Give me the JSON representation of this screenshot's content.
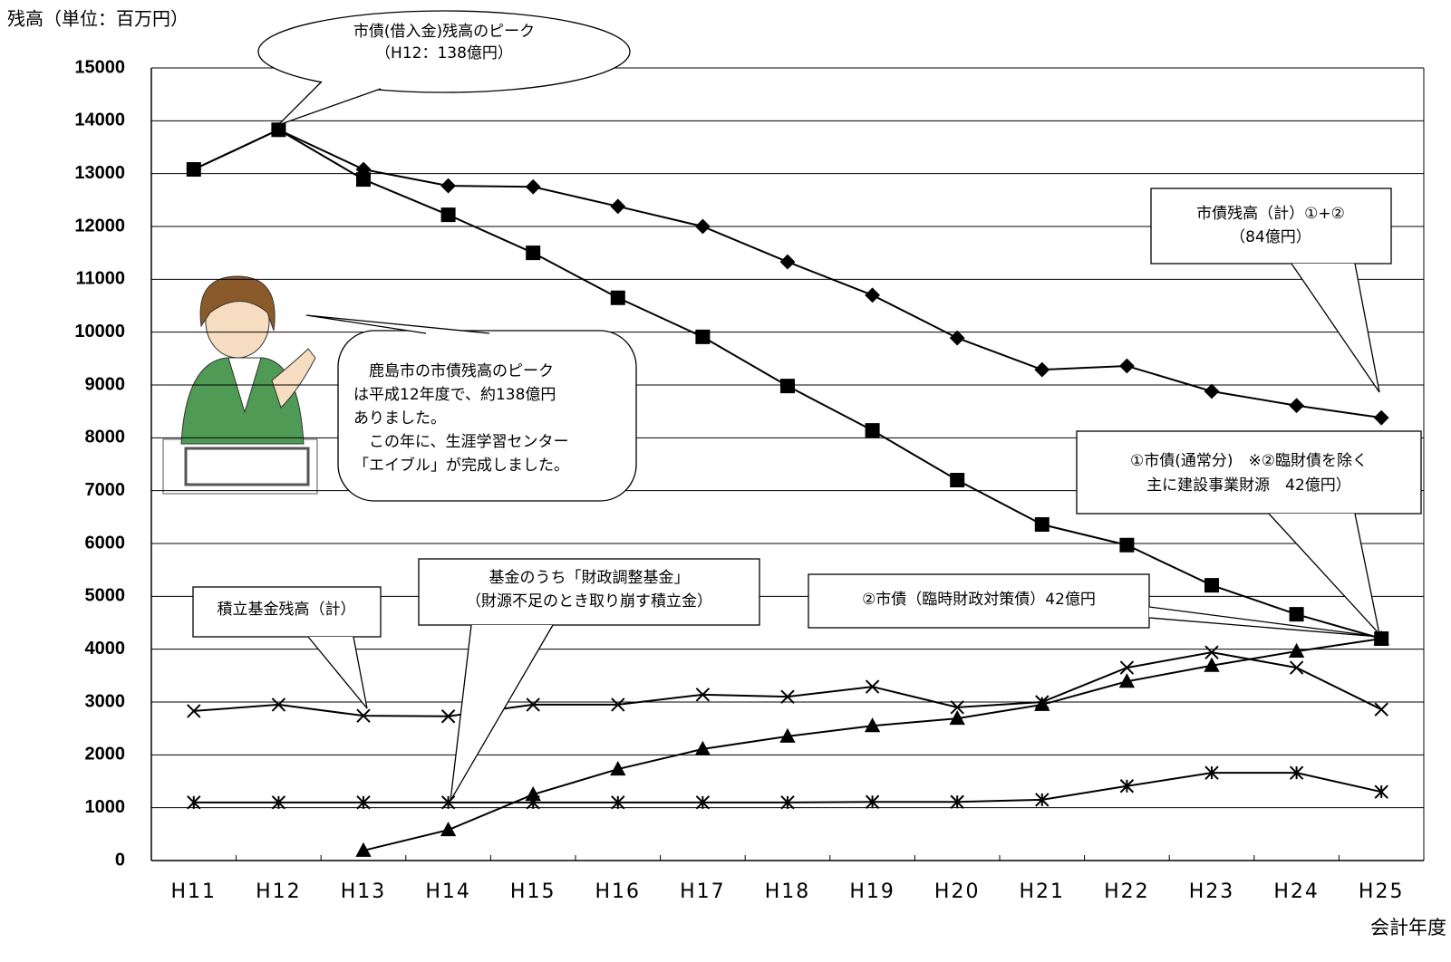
{
  "chart_data": {
    "type": "line",
    "y_axis_label": "残高（単位：百万円）",
    "x_axis_label": "会計年度",
    "categories": [
      "H11",
      "H12",
      "H13",
      "H14",
      "H15",
      "H16",
      "H17",
      "H18",
      "H19",
      "H20",
      "H21",
      "H22",
      "H23",
      "H24",
      "H25"
    ],
    "ylim": [
      0,
      15000
    ],
    "yticks": [
      0,
      1000,
      2000,
      3000,
      4000,
      5000,
      6000,
      7000,
      8000,
      9000,
      10000,
      11000,
      12000,
      13000,
      14000,
      15000
    ],
    "grid": true,
    "series": [
      {
        "marker": "diamond",
        "color": "#000000",
        "values": [
          13080,
          13830,
          13080,
          12770,
          12750,
          12380,
          12000,
          11330,
          10700,
          9890,
          9290,
          9360,
          8880,
          8610,
          8380
        ]
      },
      {
        "marker": "square",
        "color": "#000000",
        "values": [
          13080,
          13830,
          12890,
          12220,
          11500,
          10650,
          9910,
          8980,
          8140,
          7200,
          6360,
          5970,
          5210,
          4660,
          4200
        ]
      },
      {
        "marker": "triangle",
        "color": "#000000",
        "values": [
          null,
          null,
          190,
          580,
          1250,
          1730,
          2110,
          2350,
          2550,
          2690,
          2950,
          3390,
          3690,
          3960,
          4200
        ]
      },
      {
        "marker": "x",
        "color": "#000000",
        "values": [
          2830,
          2950,
          2740,
          2730,
          2950,
          2950,
          3140,
          3100,
          3290,
          2900,
          3000,
          3650,
          3940,
          3650,
          2860
        ]
      },
      {
        "marker": "asterisk",
        "color": "#000000",
        "values": [
          1100,
          1100,
          1100,
          1100,
          1100,
          1100,
          1100,
          1100,
          1110,
          1110,
          1150,
          1410,
          1660,
          1660,
          1300
        ]
      }
    ],
    "annotations": [
      {
        "lines": [
          "市債(借入金)残高のピーク",
          "（H12：138億円）"
        ]
      },
      {
        "lines": [
          "市債残高（計）①+②",
          "（84億円）"
        ]
      },
      {
        "lines": [
          "　鹿島市の市債残高のピーク",
          "は平成12年度で、約138億円",
          "ありました。",
          "　この年に、生涯学習センター",
          "「エイブル」が完成しました。"
        ]
      },
      {
        "lines": [
          "①市債(通常分)　※②臨財債を除く",
          "主に建設事業財源　42億円）"
        ]
      },
      {
        "lines": [
          "②市債（臨時財政対策債）42億円"
        ]
      },
      {
        "lines": [
          "基金のうち「財政調整基金」",
          "（財源不足のとき取り崩す積立金）"
        ]
      },
      {
        "lines": [
          "積立基金残高（計）"
        ]
      }
    ]
  }
}
